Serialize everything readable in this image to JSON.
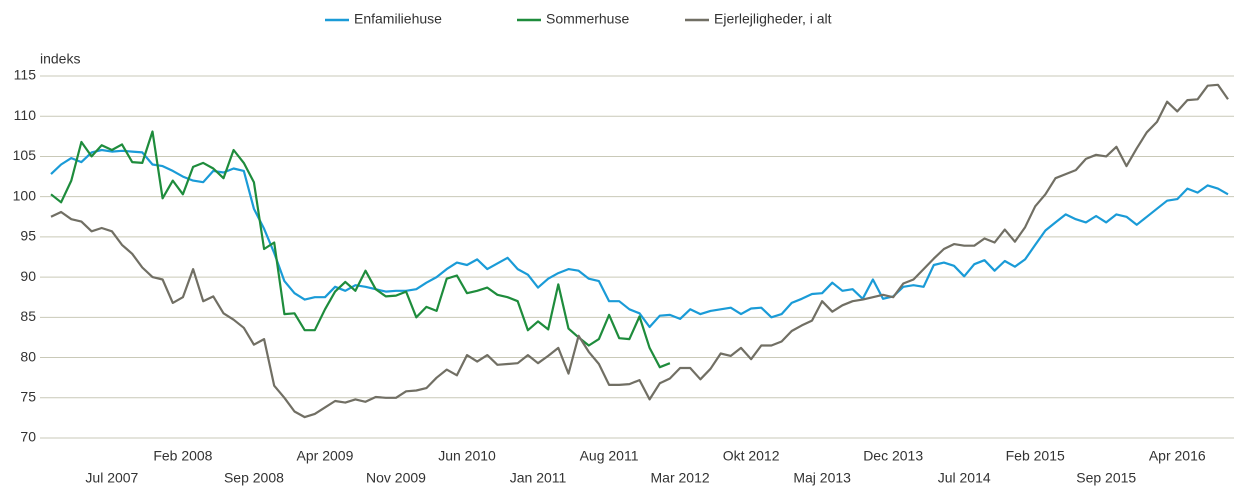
{
  "chart_data": {
    "type": "line",
    "y_label": "indeks",
    "categories": [
      null,
      null,
      null,
      null,
      null,
      null,
      "Jul 2007",
      null,
      null,
      null,
      null,
      null,
      null,
      "Feb 2008",
      null,
      null,
      null,
      null,
      null,
      null,
      "Sep 2008",
      null,
      null,
      null,
      null,
      null,
      null,
      "Apr 2009",
      null,
      null,
      null,
      null,
      null,
      null,
      "Nov 2009",
      null,
      null,
      null,
      null,
      null,
      null,
      "Jun 2010",
      null,
      null,
      null,
      null,
      null,
      null,
      "Jan 2011",
      null,
      null,
      null,
      null,
      null,
      null,
      "Aug 2011",
      null,
      null,
      null,
      null,
      null,
      null,
      "Mar 2012",
      null,
      null,
      null,
      null,
      null,
      null,
      "Okt 2012",
      null,
      null,
      null,
      null,
      null,
      null,
      "Maj 2013",
      null,
      null,
      null,
      null,
      null,
      null,
      "Dec 2013",
      null,
      null,
      null,
      null,
      null,
      null,
      "Jul 2014",
      null,
      null,
      null,
      null,
      null,
      null,
      "Feb 2015",
      null,
      null,
      null,
      null,
      null,
      null,
      "Sep 2015",
      null,
      null,
      null,
      null,
      null,
      null,
      "Apr 2016",
      null,
      null,
      null,
      null,
      null
    ],
    "series": [
      {
        "name": "Enfamiliehuse",
        "color": "#1a9bd7",
        "values": [
          102.8,
          104,
          104.8,
          104.3,
          105.5,
          105.8,
          105.6,
          105.7,
          105.6,
          105.5,
          104,
          103.8,
          103.2,
          102.5,
          102,
          101.8,
          103.2,
          103,
          103.5,
          103.2,
          98.5,
          96,
          93,
          89.5,
          88,
          87.2,
          87.5,
          87.5,
          88.8,
          88.3,
          89,
          88.8,
          88.5,
          88.2,
          88.3,
          88.3,
          88.5,
          89.3,
          90,
          91,
          91.8,
          91.5,
          92.2,
          91,
          91.7,
          92.4,
          91,
          90.3,
          88.7,
          89.8,
          90.5,
          91,
          90.8,
          89.8,
          89.5,
          87,
          87,
          86,
          85.5,
          83.8,
          85.2,
          85.3,
          84.8,
          86,
          85.4,
          85.8,
          86,
          86.2,
          85.4,
          86.1,
          86.2,
          85,
          85.4,
          86.8,
          87.3,
          87.9,
          88,
          89.3,
          88.3,
          88.5,
          87.3,
          89.7,
          87.3,
          87.6,
          88.8,
          89,
          88.8,
          91.5,
          91.8,
          91.4,
          90.1,
          91.6,
          92.1,
          90.8,
          92,
          91.3,
          92.2,
          94,
          95.8,
          96.8,
          97.8,
          97.2,
          96.8,
          97.6,
          96.8,
          97.8,
          97.5,
          96.5,
          97.5,
          98.5,
          99.5,
          99.7,
          101,
          100.5,
          101.4,
          101,
          100.3
        ]
      },
      {
        "name": "Sommerhuse",
        "color": "#1e8c3c",
        "values": [
          100.3,
          99.3,
          102,
          106.8,
          105,
          106.4,
          105.8,
          106.5,
          104.3,
          104.2,
          108.1,
          99.8,
          102,
          100.3,
          103.7,
          104.2,
          103.5,
          102.3,
          105.8,
          104.2,
          101.8,
          93.5,
          94.3,
          85.4,
          85.5,
          83.4,
          83.4,
          86,
          88.2,
          89.4,
          88.3,
          90.8,
          88.5,
          87.6,
          87.7,
          88.2,
          85,
          86.3,
          85.8,
          89.8,
          90.2,
          88,
          88.3,
          88.7,
          87.8,
          87.5,
          87,
          83.4,
          84.5,
          83.5,
          89.1,
          83.6,
          82.5,
          81.5,
          82.3,
          85.3,
          82.4,
          82.3,
          85.1,
          81.2,
          78.8,
          79.3,
          null,
          null,
          null,
          null,
          null,
          null,
          null,
          null,
          null,
          null,
          null,
          null,
          null,
          null,
          null,
          null,
          null,
          null,
          null,
          null,
          null,
          null,
          null,
          null,
          null,
          null,
          null,
          null,
          null,
          null,
          null,
          null,
          null,
          null,
          null,
          null,
          null,
          null,
          null,
          null,
          null,
          null,
          null,
          null,
          null,
          null,
          null,
          null,
          null,
          null,
          null,
          null,
          null,
          null,
          null
        ]
      },
      {
        "name": "Ejerlejligheder, i alt",
        "color": "#716f64",
        "values": [
          97.5,
          98.1,
          97.2,
          96.9,
          95.7,
          96.1,
          95.7,
          94,
          92.9,
          91.2,
          90,
          89.7,
          86.8,
          87.5,
          91,
          87,
          87.6,
          85.5,
          84.7,
          83.7,
          81.6,
          82.3,
          76.5,
          75,
          73.3,
          72.6,
          73,
          73.8,
          74.6,
          74.4,
          74.8,
          74.5,
          75.1,
          75,
          75,
          75.8,
          75.9,
          76.2,
          77.5,
          78.5,
          77.8,
          80.3,
          79.5,
          80.3,
          79.1,
          79.2,
          79.3,
          80.3,
          79.3,
          80.2,
          81.2,
          78,
          82.7,
          80.7,
          79.2,
          76.6,
          76.6,
          76.7,
          77.2,
          74.8,
          76.8,
          77.4,
          78.7,
          78.7,
          77.3,
          78.6,
          80.5,
          80.2,
          81.2,
          79.8,
          81.5,
          81.5,
          82,
          83.3,
          84,
          84.6,
          87,
          85.7,
          86.5,
          87,
          87.2,
          87.5,
          87.8,
          87.5,
          89.2,
          89.7,
          91,
          92.3,
          93.5,
          94.1,
          93.9,
          93.9,
          94.8,
          94.3,
          95.9,
          94.4,
          96.2,
          98.8,
          100.3,
          102.3,
          102.8,
          103.3,
          104.7,
          105.2,
          105,
          106.2,
          103.8,
          106,
          108,
          109.3,
          111.8,
          110.6,
          112,
          112.1,
          113.8,
          113.9,
          112.1
        ]
      }
    ],
    "ylim": [
      70,
      115
    ],
    "yticks": [
      70,
      75,
      80,
      85,
      90,
      95,
      100,
      105,
      110,
      115
    ],
    "grid": true,
    "legend": "top"
  }
}
